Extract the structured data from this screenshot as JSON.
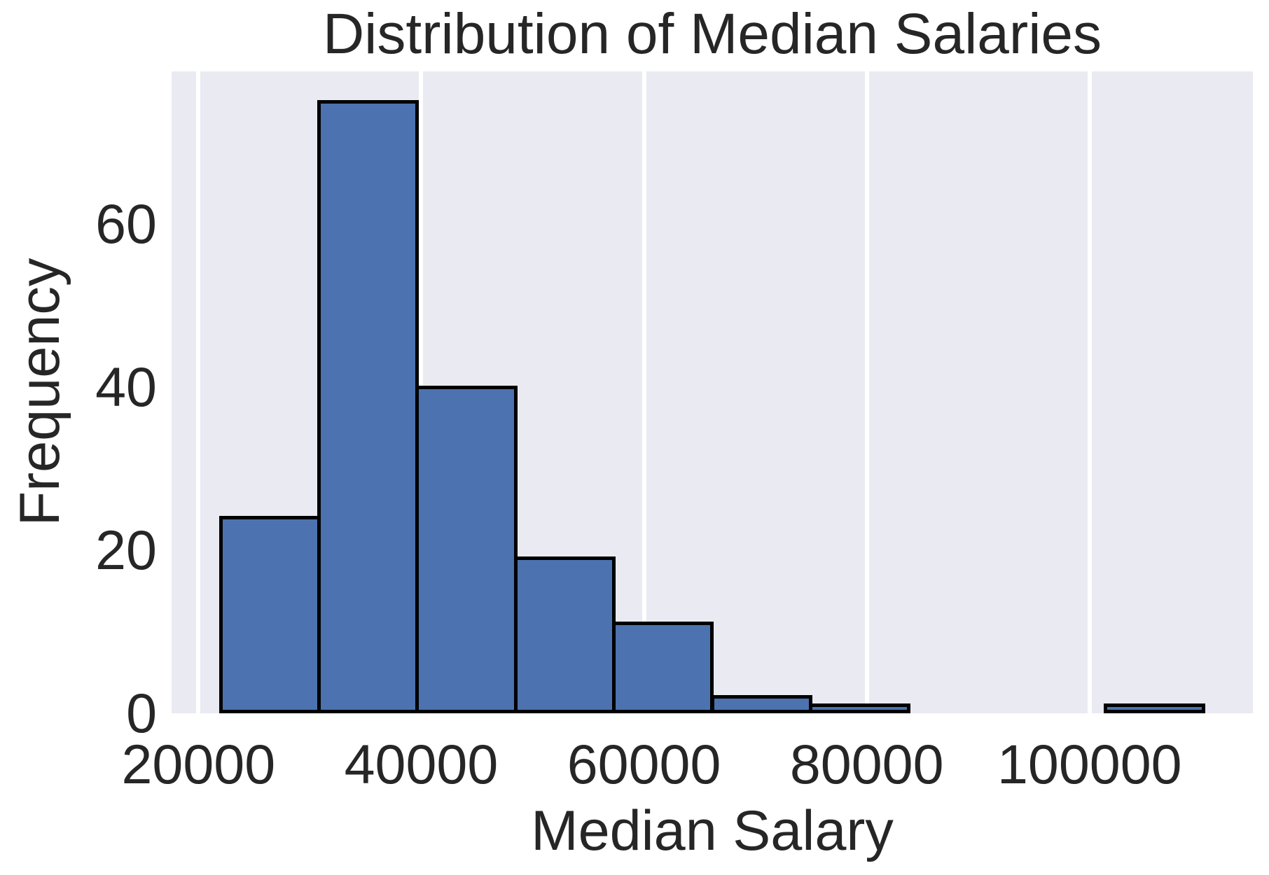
{
  "chart_data": {
    "type": "bar",
    "subtype": "histogram",
    "title": "Distribution of Median Salaries",
    "xlabel": "Median Salary",
    "ylabel": "Frequency",
    "bin_edges": [
      22000,
      30825,
      39650,
      48475,
      57300,
      66125,
      74950,
      83775,
      92600,
      101425,
      110250
    ],
    "counts": [
      24,
      75,
      40,
      19,
      11,
      2,
      1,
      0,
      0,
      1
    ],
    "total_count": 173,
    "xticks": [
      20000,
      40000,
      60000,
      80000,
      100000
    ],
    "yticks": [
      0,
      20,
      40,
      60
    ],
    "xlim": [
      17590,
      114660
    ],
    "ylim": [
      0,
      78.75
    ],
    "grid": "vertical-white-lines",
    "legend": "none",
    "colors": {
      "bar_fill": "#4c72b0",
      "bar_edge": "#000000",
      "plot_background": "#eaeaf2",
      "figure_background": "#ffffff",
      "gridline": "#ffffff",
      "text": "#262626"
    }
  }
}
